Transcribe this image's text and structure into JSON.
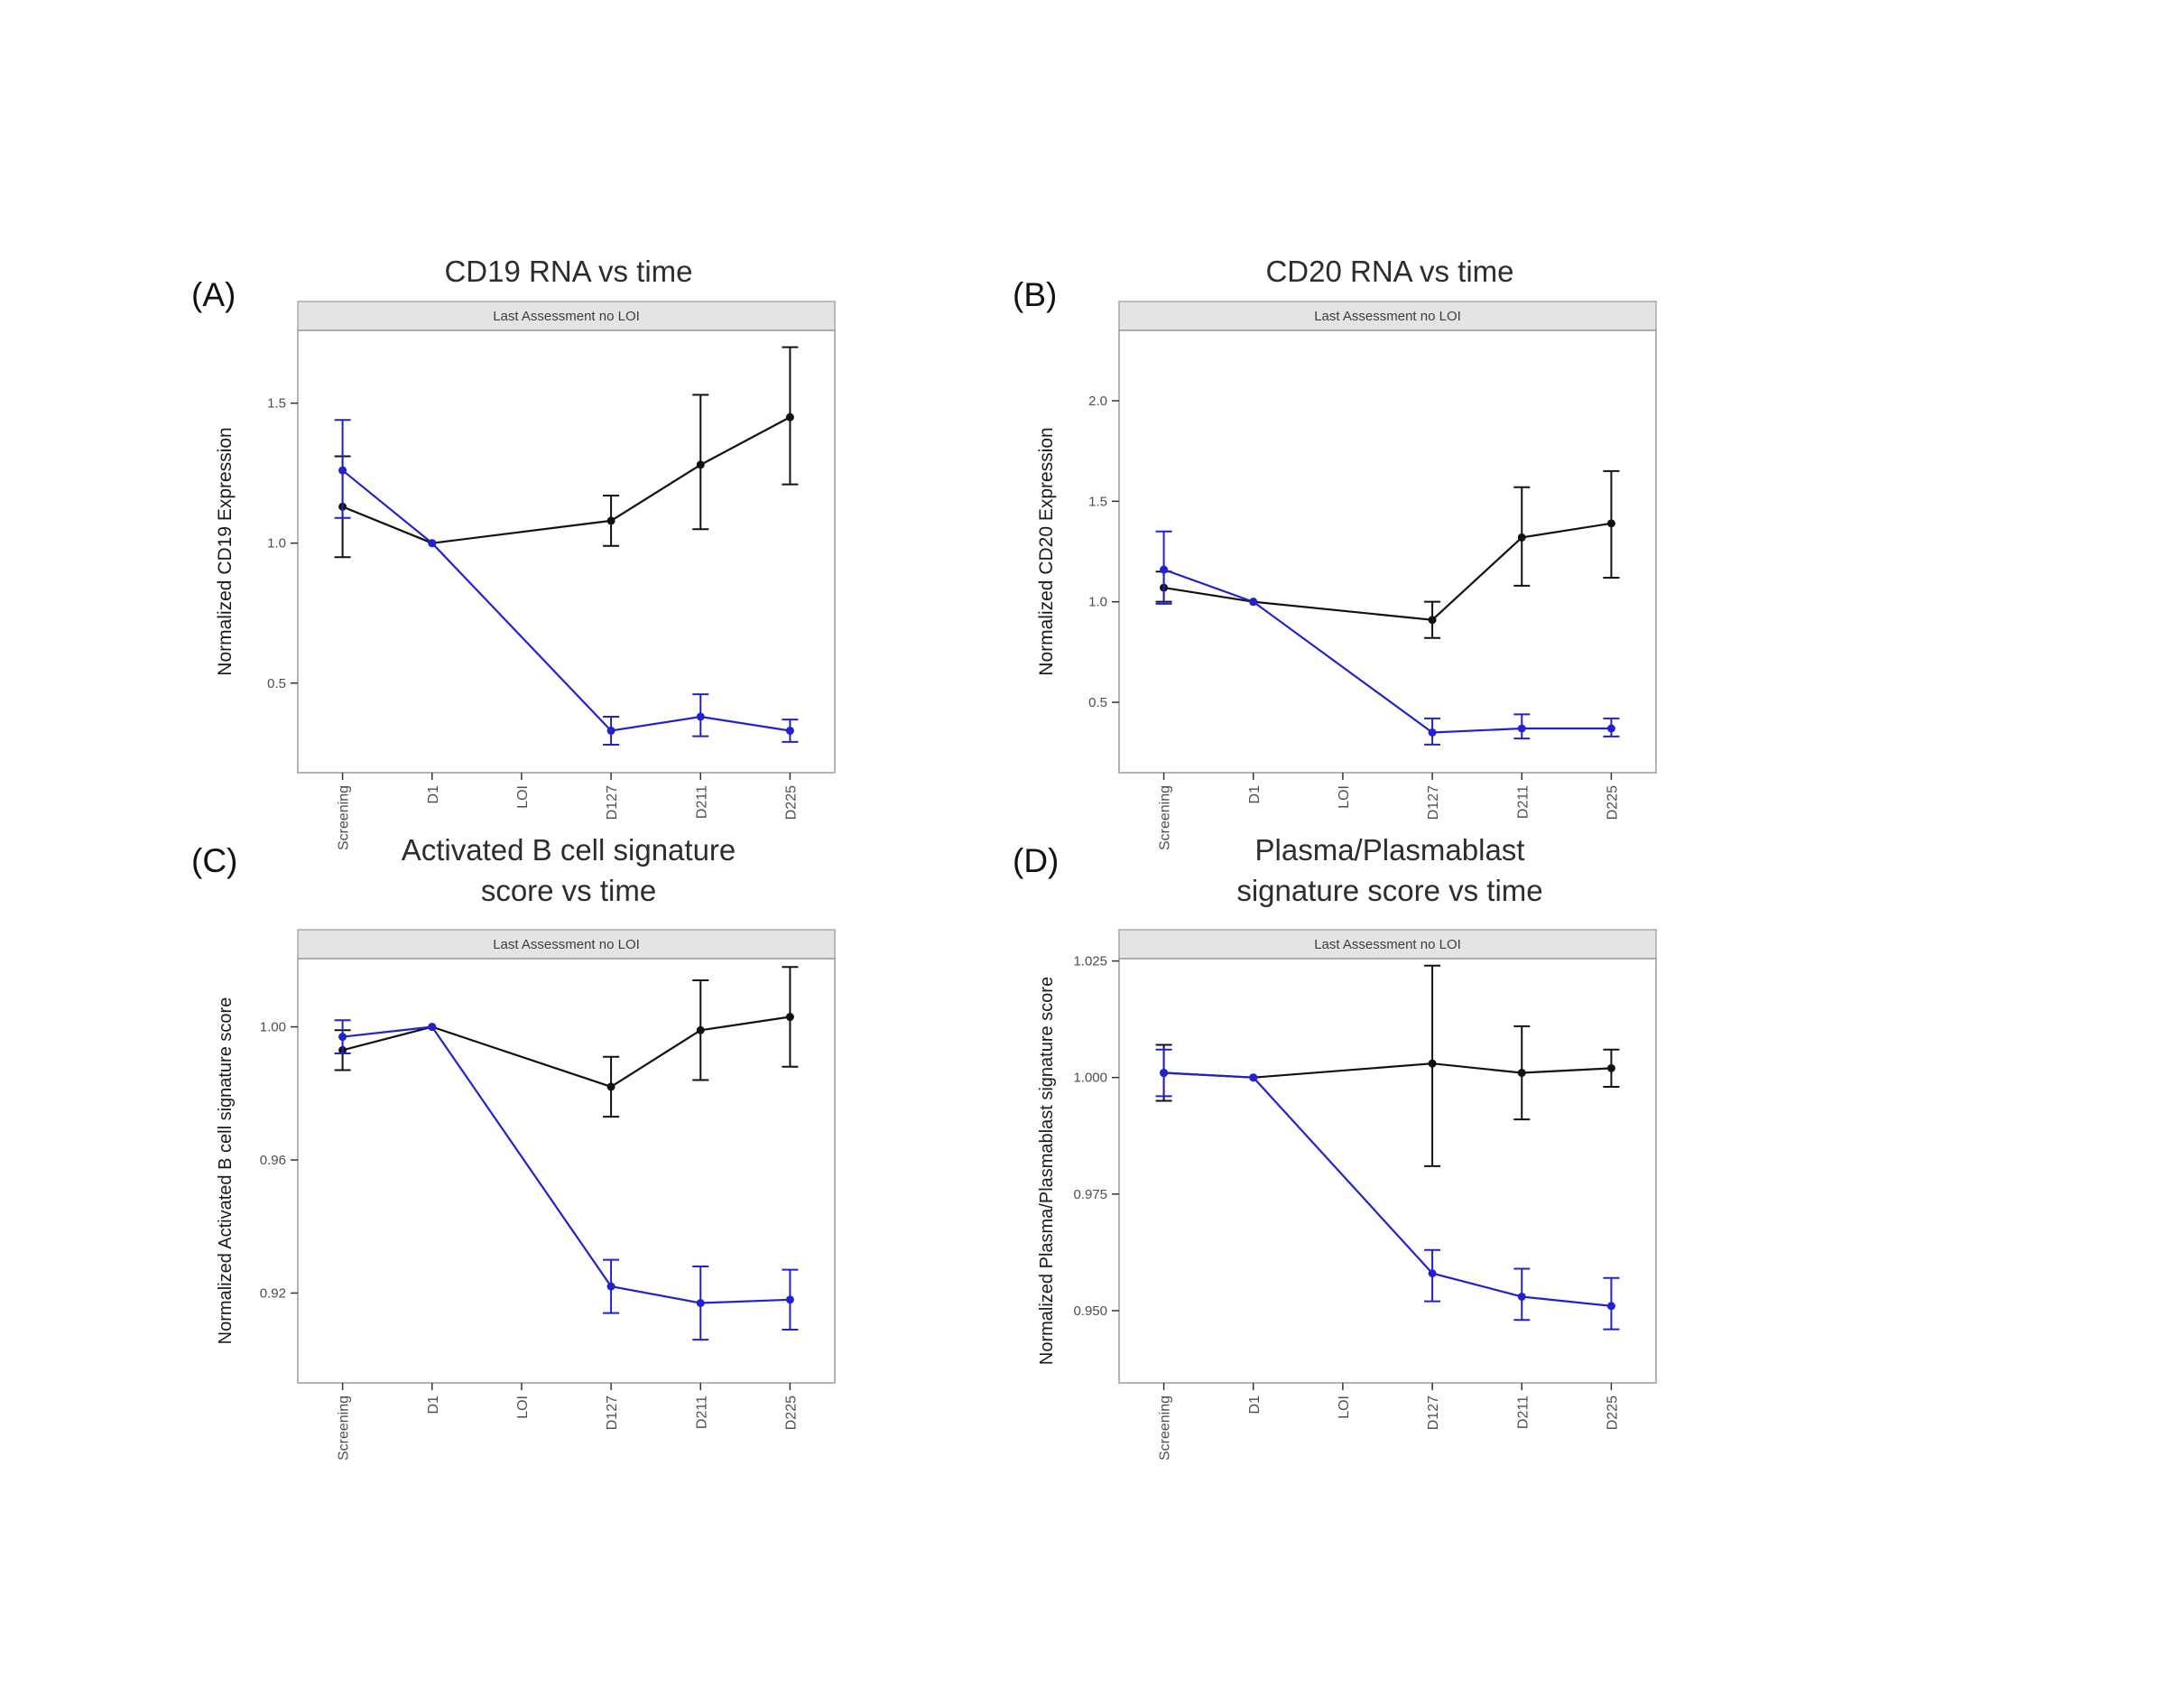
{
  "figure": {
    "strip_label": "Last Assessment no LOI",
    "categories": [
      "Screening",
      "D1",
      "LOI",
      "D127",
      "D211",
      "D225"
    ],
    "series_colors": {
      "black": "#111111",
      "blue": "#2222cc"
    }
  },
  "chart_data": [
    {
      "id": "A",
      "panel_label": "(A)",
      "type": "line",
      "title": "CD19 RNA vs time",
      "title_lines": [
        "CD19 RNA vs time"
      ],
      "strip_label": "Last Assessment no LOI",
      "xlabel": "",
      "ylabel": "Normalized CD19 Expression",
      "categories": [
        "Screening",
        "D1",
        "LOI",
        "D127",
        "D211",
        "D225"
      ],
      "ylim": [
        0.18,
        1.76
      ],
      "yticks": [
        0.5,
        1.0,
        1.5
      ],
      "ytick_labels": [
        "0.5",
        "1.0",
        "1.5"
      ],
      "grid": false,
      "legend": "none",
      "series": [
        {
          "name": "black",
          "color": "#111111",
          "values": [
            1.13,
            1.0,
            null,
            1.08,
            1.28,
            1.45
          ],
          "err_low": [
            0.95,
            null,
            null,
            0.99,
            1.05,
            1.21
          ],
          "err_high": [
            1.31,
            null,
            null,
            1.17,
            1.53,
            1.7
          ]
        },
        {
          "name": "blue",
          "color": "#2222cc",
          "values": [
            1.26,
            1.0,
            null,
            0.33,
            0.38,
            0.33
          ],
          "err_low": [
            1.09,
            null,
            null,
            0.28,
            0.31,
            0.29
          ],
          "err_high": [
            1.44,
            null,
            null,
            0.38,
            0.46,
            0.37
          ]
        }
      ]
    },
    {
      "id": "B",
      "panel_label": "(B)",
      "type": "line",
      "title": "CD20 RNA vs time",
      "title_lines": [
        "CD20 RNA vs time"
      ],
      "strip_label": "Last Assessment no LOI",
      "xlabel": "",
      "ylabel": "Normalized CD20 Expression",
      "categories": [
        "Screening",
        "D1",
        "LOI",
        "D127",
        "D211",
        "D225"
      ],
      "ylim": [
        0.15,
        2.35
      ],
      "yticks": [
        0.5,
        1.0,
        1.5,
        2.0
      ],
      "ytick_labels": [
        "0.5",
        "1.0",
        "1.5",
        "2.0"
      ],
      "grid": false,
      "legend": "none",
      "series": [
        {
          "name": "black",
          "color": "#111111",
          "values": [
            1.07,
            1.0,
            null,
            0.91,
            1.32,
            1.39
          ],
          "err_low": [
            1.0,
            null,
            null,
            0.82,
            1.08,
            1.12
          ],
          "err_high": [
            1.15,
            null,
            null,
            1.0,
            1.57,
            1.65
          ]
        },
        {
          "name": "blue",
          "color": "#2222cc",
          "values": [
            1.16,
            1.0,
            null,
            0.35,
            0.37,
            0.37
          ],
          "err_low": [
            0.99,
            null,
            null,
            0.29,
            0.32,
            0.33
          ],
          "err_high": [
            1.35,
            null,
            null,
            0.42,
            0.44,
            0.42
          ]
        }
      ]
    },
    {
      "id": "C",
      "panel_label": "(C)",
      "type": "line",
      "title": "Activated B cell signature score vs time",
      "title_lines": [
        "Activated B cell signature",
        "score vs time"
      ],
      "strip_label": "Last Assessment no LOI",
      "xlabel": "",
      "ylabel": "Normalized Activated B cell signature score",
      "categories": [
        "Screening",
        "D1",
        "LOI",
        "D127",
        "D211",
        "D225"
      ],
      "ylim": [
        0.893,
        1.0205
      ],
      "yticks": [
        0.92,
        0.96,
        1.0
      ],
      "ytick_labels": [
        "0.92",
        "0.96",
        "1.00"
      ],
      "grid": false,
      "legend": "none",
      "series": [
        {
          "name": "black",
          "color": "#111111",
          "values": [
            0.993,
            1.0,
            null,
            0.982,
            0.999,
            1.003
          ],
          "err_low": [
            0.987,
            null,
            null,
            0.973,
            0.984,
            0.988
          ],
          "err_high": [
            0.999,
            null,
            null,
            0.991,
            1.014,
            1.018
          ]
        },
        {
          "name": "blue",
          "color": "#2222cc",
          "values": [
            0.997,
            1.0,
            null,
            0.922,
            0.917,
            0.918
          ],
          "err_low": [
            0.992,
            null,
            null,
            0.914,
            0.906,
            0.909
          ],
          "err_high": [
            1.002,
            null,
            null,
            0.93,
            0.928,
            0.927
          ]
        }
      ]
    },
    {
      "id": "D",
      "panel_label": "(D)",
      "type": "line",
      "title": "Plasma/Plasmablast signature score vs time",
      "title_lines": [
        "Plasma/Plasmablast",
        "signature score vs time"
      ],
      "strip_label": "Last Assessment no LOI",
      "xlabel": "",
      "ylabel": "Normalized Plasma/Plasmablast signature score",
      "categories": [
        "Screening",
        "D1",
        "LOI",
        "D127",
        "D211",
        "D225"
      ],
      "ylim": [
        0.9345,
        1.0255
      ],
      "yticks": [
        0.95,
        0.975,
        1.0,
        1.025
      ],
      "ytick_labels": [
        "0.950",
        "0.975",
        "1.000",
        "1.025"
      ],
      "grid": false,
      "legend": "none",
      "series": [
        {
          "name": "black",
          "color": "#111111",
          "values": [
            1.001,
            1.0,
            null,
            1.003,
            1.001,
            1.002
          ],
          "err_low": [
            0.995,
            null,
            null,
            0.981,
            0.991,
            0.998
          ],
          "err_high": [
            1.007,
            null,
            null,
            1.024,
            1.011,
            1.006
          ]
        },
        {
          "name": "blue",
          "color": "#2222cc",
          "values": [
            1.001,
            1.0,
            null,
            0.958,
            0.953,
            0.951
          ],
          "err_low": [
            0.996,
            null,
            null,
            0.952,
            0.948,
            0.946
          ],
          "err_high": [
            1.006,
            null,
            null,
            0.963,
            0.959,
            0.957
          ]
        }
      ]
    }
  ]
}
